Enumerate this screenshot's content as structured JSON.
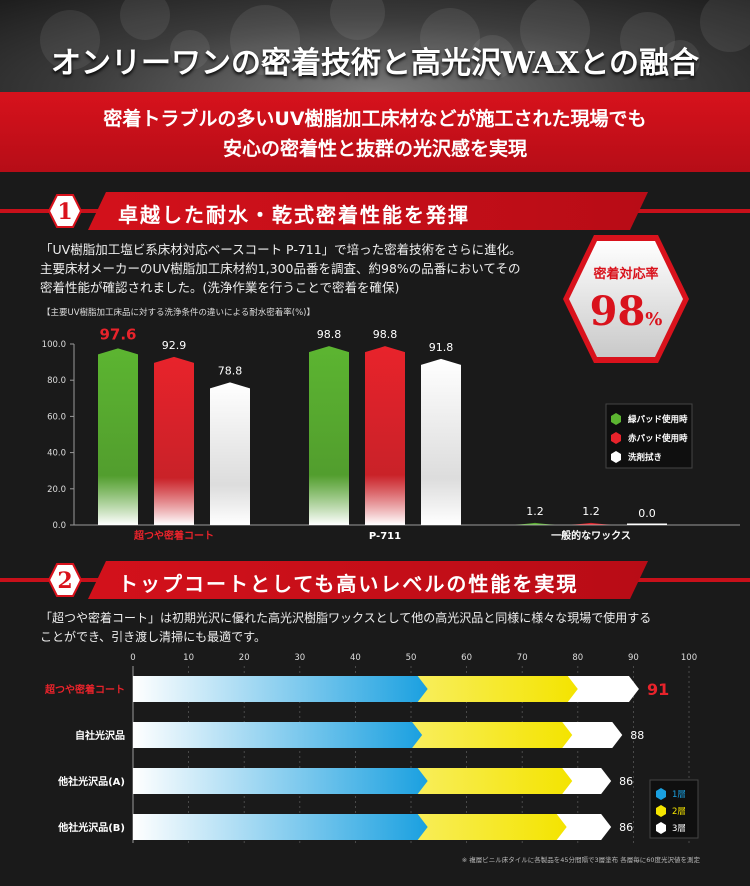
{
  "header": {
    "title": "オンリーワンの密着技術と高光沢WAXとの融合",
    "sub_line1": "密着トラブルの多いUV樹脂加工床材などが施工された現場でも",
    "sub_line2": "安心の密着性と抜群の光沢感を実現"
  },
  "section1": {
    "number": "1",
    "title": "卓越した耐水・乾式密着性能を発揮",
    "text_line1": "「UV樹脂加工塩ビ系床材対応ベースコート P-711」で培った密着技術をさらに進化。",
    "text_line2": "主要床材メーカーのUV樹脂加工床材約1,300品番を調査、約98%の品番においてその",
    "text_line3": "密着性能が確認されました。(洗浄作業を行うことで密着を確保)",
    "badge_label": "密着対応率",
    "badge_value": "98",
    "badge_unit": "%"
  },
  "section2": {
    "number": "2",
    "title": "トップコートとしても高いレベルの性能を実現",
    "text_line1": "「超つや密着コート」は初期光沢に優れた高光沢樹脂ワックスとして他の高光沢品と同様に様々な現場で使用する",
    "text_line2": "ことができ、引き渡し清掃にも最適です。",
    "footnote": "※ 複層ビニル床タイルに各製品を45分間隔で3層塗布 各層毎に60度光沢値を測定"
  },
  "colors": {
    "red": "#d9121c",
    "green": "#5cb531",
    "blue": "#1aa0e0",
    "yellow": "#f4e400"
  },
  "chart_data": [
    {
      "type": "bar",
      "title": "【主要UV樹脂加工床品に対する洗浄条件の違いによる耐水密着率(%)】",
      "categories": [
        "超つや密着コート",
        "P-711",
        "一般的なワックス"
      ],
      "category_colors": [
        "#e8232b",
        "#ffffff",
        "#ffffff"
      ],
      "series": [
        {
          "name": "緑パッド使用時",
          "color": "#5cb531",
          "values": [
            97.6,
            98.8,
            1.2
          ],
          "labels": [
            "97.6",
            "98.8",
            "1.2"
          ]
        },
        {
          "name": "赤パッド使用時",
          "color": "#e8232b",
          "values": [
            92.9,
            98.8,
            1.2
          ],
          "labels": [
            "92.9",
            "98.8",
            "1.2"
          ]
        },
        {
          "name": "洗剤拭き",
          "color": "#ffffff",
          "values": [
            78.8,
            91.8,
            0.0
          ],
          "labels": [
            "78.8",
            "91.8",
            "0.0"
          ]
        }
      ],
      "highlight_label": {
        "category": 0,
        "series": 0,
        "color": "#e8232b"
      },
      "yticks": [
        "0.0",
        "20.0",
        "40.0",
        "60.0",
        "80.0",
        "100.0"
      ],
      "ylim": [
        0,
        100
      ],
      "legend": "right"
    },
    {
      "type": "bar",
      "orientation": "horizontal",
      "stacked": true,
      "categories": [
        "超つや密着コート",
        "自社光沢品",
        "他社光沢品(A)",
        "他社光沢品(B)"
      ],
      "category_colors": [
        "#e8232b",
        "#ffffff",
        "#ffffff",
        "#ffffff"
      ],
      "layers": [
        {
          "name": "1層",
          "color": "#1aa0e0",
          "values": [
            53,
            52,
            53,
            53
          ]
        },
        {
          "name": "2層",
          "color": "#f4e400",
          "values": [
            80,
            79,
            79,
            78
          ]
        },
        {
          "name": "3層",
          "color": "#ffffff",
          "values": [
            91,
            88,
            86,
            86
          ]
        }
      ],
      "totals": [
        "91",
        "88",
        "86",
        "86"
      ],
      "total_colors": [
        "#e8232b",
        "#ffffff",
        "#ffffff",
        "#ffffff"
      ],
      "xticks": [
        "0",
        "10",
        "20",
        "30",
        "40",
        "50",
        "60",
        "70",
        "80",
        "90",
        "100"
      ],
      "xlim": [
        0,
        100
      ],
      "legend": "bottom-right"
    }
  ]
}
